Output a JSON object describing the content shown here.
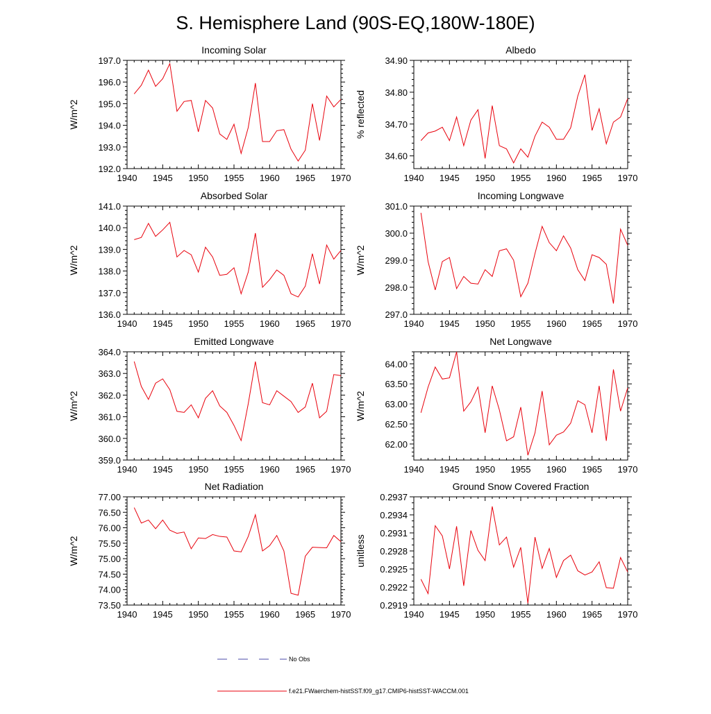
{
  "figure": {
    "title": "S. Hemisphere Land (90S-EQ,180W-180E)"
  },
  "legend": {
    "items": [
      {
        "label": "No Obs",
        "color": "#4a4aa8",
        "style": "dashed"
      },
      {
        "label": "f.e21.FWaerchem-histSST.f09_g17.CMIP6-histSST-WACCM.001",
        "color": "#e8000b",
        "style": "solid"
      }
    ]
  },
  "chart_data": [
    {
      "type": "line",
      "title": "Incoming Solar",
      "ylabel": "W/m^2",
      "xlim": [
        1940,
        1970
      ],
      "ylim": [
        192.0,
        197.0
      ],
      "xticks": [
        1940,
        1945,
        1950,
        1955,
        1960,
        1965,
        1970
      ],
      "xtick_labels": [
        "1940",
        "1945",
        "1950",
        "1955",
        "1960",
        "1965",
        "1970"
      ],
      "yticks": [
        192.0,
        193.0,
        194.0,
        195.0,
        196.0,
        197.0
      ],
      "ytick_labels": [
        "192.0",
        "193.0",
        "194.0",
        "195.0",
        "196.0",
        "197.0"
      ],
      "x": [
        1941,
        1942,
        1943,
        1944,
        1945,
        1946,
        1947,
        1948,
        1949,
        1950,
        1951,
        1952,
        1953,
        1954,
        1955,
        1956,
        1957,
        1958,
        1959,
        1960,
        1961,
        1962,
        1963,
        1964,
        1965,
        1966,
        1967,
        1968,
        1969,
        1970
      ],
      "series": [
        {
          "values": [
            195.45,
            195.85,
            196.55,
            195.8,
            196.15,
            196.85,
            194.65,
            195.1,
            195.15,
            193.7,
            195.15,
            194.8,
            193.6,
            193.35,
            194.05,
            192.7,
            193.9,
            195.95,
            193.25,
            193.25,
            193.75,
            193.8,
            192.9,
            192.35,
            192.85,
            195.0,
            193.3,
            195.35,
            194.85,
            195.2
          ],
          "color": "#e8000b"
        }
      ]
    },
    {
      "type": "line",
      "title": "Albedo",
      "ylabel": "% reflected",
      "xlim": [
        1940,
        1970
      ],
      "ylim": [
        34.56,
        34.9
      ],
      "xticks": [
        1940,
        1945,
        1950,
        1955,
        1960,
        1965,
        1970
      ],
      "xtick_labels": [
        "1940",
        "1945",
        "1950",
        "1955",
        "1960",
        "1965",
        "1970"
      ],
      "yticks": [
        34.6,
        34.7,
        34.8,
        34.9
      ],
      "ytick_labels": [
        "34.60",
        "34.70",
        "34.80",
        "34.90"
      ],
      "x": [
        1941,
        1942,
        1943,
        1944,
        1945,
        1946,
        1947,
        1948,
        1949,
        1950,
        1951,
        1952,
        1953,
        1954,
        1955,
        1956,
        1957,
        1958,
        1959,
        1960,
        1961,
        1962,
        1963,
        1964,
        1965,
        1966,
        1967,
        1968,
        1969,
        1970
      ],
      "series": [
        {
          "values": [
            34.648,
            34.672,
            34.678,
            34.69,
            34.648,
            34.722,
            34.632,
            34.712,
            34.745,
            34.592,
            34.758,
            34.632,
            34.622,
            34.578,
            34.622,
            34.596,
            34.662,
            34.706,
            34.69,
            34.652,
            34.652,
            34.688,
            34.788,
            34.855,
            34.68,
            34.748,
            34.638,
            34.706,
            34.722,
            34.78
          ],
          "color": "#e8000b"
        }
      ]
    },
    {
      "type": "line",
      "title": "Absorbed Solar",
      "ylabel": "W/m^2",
      "xlim": [
        1940,
        1970
      ],
      "ylim": [
        136.0,
        141.0
      ],
      "xticks": [
        1940,
        1945,
        1950,
        1955,
        1960,
        1965,
        1970
      ],
      "xtick_labels": [
        "1940",
        "1945",
        "1950",
        "1955",
        "1960",
        "1965",
        "1970"
      ],
      "yticks": [
        136.0,
        137.0,
        138.0,
        139.0,
        140.0,
        141.0
      ],
      "ytick_labels": [
        "136.0",
        "137.0",
        "138.0",
        "139.0",
        "140.0",
        "141.0"
      ],
      "x": [
        1941,
        1942,
        1943,
        1944,
        1945,
        1946,
        1947,
        1948,
        1949,
        1950,
        1951,
        1952,
        1953,
        1954,
        1955,
        1956,
        1957,
        1958,
        1959,
        1960,
        1961,
        1962,
        1963,
        1964,
        1965,
        1966,
        1967,
        1968,
        1969,
        1970
      ],
      "series": [
        {
          "values": [
            139.45,
            139.55,
            140.2,
            139.6,
            139.9,
            140.25,
            138.65,
            138.95,
            138.75,
            137.95,
            139.1,
            138.65,
            137.8,
            137.85,
            138.15,
            136.95,
            137.95,
            139.75,
            137.25,
            137.6,
            138.05,
            137.8,
            136.95,
            136.8,
            137.3,
            138.8,
            137.4,
            139.2,
            138.55,
            138.95
          ],
          "color": "#e8000b"
        }
      ]
    },
    {
      "type": "line",
      "title": "Incoming Longwave",
      "ylabel": "W/m^2",
      "xlim": [
        1940,
        1970
      ],
      "ylim": [
        297.0,
        301.0
      ],
      "xticks": [
        1940,
        1945,
        1950,
        1955,
        1960,
        1965,
        1970
      ],
      "xtick_labels": [
        "1940",
        "1945",
        "1950",
        "1955",
        "1960",
        "1965",
        "1970"
      ],
      "yticks": [
        297.0,
        298.0,
        299.0,
        300.0,
        301.0
      ],
      "ytick_labels": [
        "297.0",
        "298.0",
        "299.0",
        "300.0",
        "301.0"
      ],
      "x": [
        1941,
        1942,
        1943,
        1944,
        1945,
        1946,
        1947,
        1948,
        1949,
        1950,
        1951,
        1952,
        1953,
        1954,
        1955,
        1956,
        1957,
        1958,
        1959,
        1960,
        1961,
        1962,
        1963,
        1964,
        1965,
        1966,
        1967,
        1968,
        1969,
        1970
      ],
      "series": [
        {
          "values": [
            300.75,
            298.95,
            297.9,
            298.95,
            299.1,
            297.95,
            298.4,
            298.15,
            298.12,
            298.65,
            298.4,
            299.35,
            299.42,
            299.0,
            297.65,
            298.15,
            299.25,
            300.25,
            299.65,
            299.35,
            299.9,
            299.45,
            298.65,
            298.25,
            299.2,
            299.1,
            298.85,
            297.4,
            300.15,
            299.55
          ],
          "color": "#e8000b"
        }
      ]
    },
    {
      "type": "line",
      "title": "Emitted Longwave",
      "ylabel": "W/m^2",
      "xlim": [
        1940,
        1970
      ],
      "ylim": [
        359.0,
        364.0
      ],
      "xticks": [
        1940,
        1945,
        1950,
        1955,
        1960,
        1965,
        1970
      ],
      "xtick_labels": [
        "1940",
        "1945",
        "1950",
        "1955",
        "1960",
        "1965",
        "1970"
      ],
      "yticks": [
        359.0,
        360.0,
        361.0,
        362.0,
        363.0,
        364.0
      ],
      "ytick_labels": [
        "359.0",
        "360.0",
        "361.0",
        "362.0",
        "363.0",
        "364.0"
      ],
      "x": [
        1941,
        1942,
        1943,
        1944,
        1945,
        1946,
        1947,
        1948,
        1949,
        1950,
        1951,
        1952,
        1953,
        1954,
        1955,
        1956,
        1957,
        1958,
        1959,
        1960,
        1961,
        1962,
        1963,
        1964,
        1965,
        1966,
        1967,
        1968,
        1969,
        1970
      ],
      "series": [
        {
          "values": [
            363.55,
            362.4,
            361.8,
            362.55,
            362.75,
            362.25,
            361.25,
            361.2,
            361.55,
            360.95,
            361.85,
            362.2,
            361.5,
            361.2,
            360.6,
            359.9,
            361.6,
            363.55,
            361.65,
            361.55,
            362.2,
            361.95,
            361.7,
            361.2,
            361.45,
            362.55,
            360.95,
            361.25,
            362.95,
            362.9
          ],
          "color": "#e8000b"
        }
      ]
    },
    {
      "type": "line",
      "title": "Net Longwave",
      "ylabel": "W/m^2",
      "xlim": [
        1940,
        1970
      ],
      "ylim": [
        61.6,
        64.3
      ],
      "xticks": [
        1940,
        1945,
        1950,
        1955,
        1960,
        1965,
        1970
      ],
      "xtick_labels": [
        "1940",
        "1945",
        "1950",
        "1955",
        "1960",
        "1965",
        "1970"
      ],
      "yticks": [
        62.0,
        62.5,
        63.0,
        63.5,
        64.0
      ],
      "ytick_labels": [
        "62.00",
        "62.50",
        "63.00",
        "63.50",
        "64.00"
      ],
      "x": [
        1941,
        1942,
        1943,
        1944,
        1945,
        1946,
        1947,
        1948,
        1949,
        1950,
        1951,
        1952,
        1953,
        1954,
        1955,
        1956,
        1957,
        1958,
        1959,
        1960,
        1961,
        1962,
        1963,
        1964,
        1965,
        1966,
        1967,
        1968,
        1969,
        1970
      ],
      "series": [
        {
          "values": [
            62.78,
            63.42,
            63.92,
            63.62,
            63.65,
            64.3,
            62.82,
            63.05,
            63.42,
            62.28,
            63.45,
            62.85,
            62.08,
            62.18,
            62.92,
            61.72,
            62.28,
            63.32,
            61.98,
            62.22,
            62.3,
            62.52,
            63.08,
            62.98,
            62.28,
            63.45,
            62.08,
            63.86,
            62.82,
            63.4
          ],
          "color": "#e8000b"
        }
      ]
    },
    {
      "type": "line",
      "title": "Net Radiation",
      "ylabel": "W/m^2",
      "xlim": [
        1940,
        1970
      ],
      "ylim": [
        73.5,
        77.0
      ],
      "xticks": [
        1940,
        1945,
        1950,
        1955,
        1960,
        1965,
        1970
      ],
      "xtick_labels": [
        "1940",
        "1945",
        "1950",
        "1955",
        "1960",
        "1965",
        "1970"
      ],
      "yticks": [
        73.5,
        74.0,
        74.5,
        75.0,
        75.5,
        76.0,
        76.5,
        77.0
      ],
      "ytick_labels": [
        "73.50",
        "74.00",
        "74.50",
        "75.00",
        "75.50",
        "76.00",
        "76.50",
        "77.00"
      ],
      "x": [
        1941,
        1942,
        1943,
        1944,
        1945,
        1946,
        1947,
        1948,
        1949,
        1950,
        1951,
        1952,
        1953,
        1954,
        1955,
        1956,
        1957,
        1958,
        1959,
        1960,
        1961,
        1962,
        1963,
        1964,
        1965,
        1966,
        1967,
        1968,
        1969,
        1970
      ],
      "series": [
        {
          "values": [
            76.65,
            76.15,
            76.25,
            75.97,
            76.25,
            75.92,
            75.82,
            75.86,
            75.32,
            75.67,
            75.65,
            75.78,
            75.72,
            75.7,
            75.25,
            75.22,
            75.72,
            76.42,
            75.25,
            75.42,
            75.75,
            75.25,
            73.88,
            73.82,
            75.08,
            75.37,
            75.36,
            75.35,
            75.75,
            75.55
          ],
          "color": "#e8000b"
        }
      ]
    },
    {
      "type": "line",
      "title": "Ground Snow Covered Fraction",
      "ylabel": "unitless",
      "xlim": [
        1940,
        1970
      ],
      "ylim": [
        0.2919,
        0.2937
      ],
      "xticks": [
        1940,
        1945,
        1950,
        1955,
        1960,
        1965,
        1970
      ],
      "xtick_labels": [
        "1940",
        "1945",
        "1950",
        "1955",
        "1960",
        "1965",
        "1970"
      ],
      "yticks": [
        0.2919,
        0.2922,
        0.2925,
        0.2928,
        0.2931,
        0.2934,
        0.2937
      ],
      "ytick_labels": [
        "0.2919",
        "0.2922",
        "0.2925",
        "0.2928",
        "0.2931",
        "0.2934",
        "0.2937"
      ],
      "x": [
        1941,
        1942,
        1943,
        1944,
        1945,
        1946,
        1947,
        1948,
        1949,
        1950,
        1951,
        1952,
        1953,
        1954,
        1955,
        1956,
        1957,
        1958,
        1959,
        1960,
        1961,
        1962,
        1963,
        1964,
        1965,
        1966,
        1967,
        1968,
        1969,
        1970
      ],
      "series": [
        {
          "values": [
            0.29233,
            0.29209,
            0.29322,
            0.29305,
            0.2925,
            0.29321,
            0.29222,
            0.29314,
            0.29281,
            0.29264,
            0.29354,
            0.2929,
            0.29303,
            0.29253,
            0.29286,
            0.29193,
            0.29303,
            0.29251,
            0.29284,
            0.29236,
            0.29264,
            0.29273,
            0.29247,
            0.2924,
            0.29245,
            0.29262,
            0.29219,
            0.29218,
            0.29269,
            0.29245
          ],
          "color": "#e8000b"
        }
      ]
    }
  ]
}
